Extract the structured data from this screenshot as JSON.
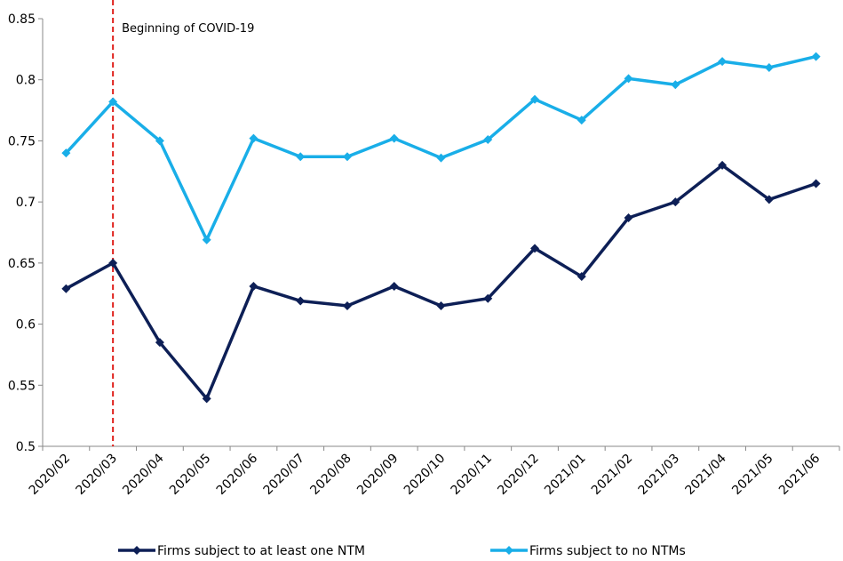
{
  "chart_data": {
    "type": "line",
    "categories": [
      "2020/02",
      "2020/03",
      "2020/04",
      "2020/05",
      "2020/06",
      "2020/07",
      "2020/08",
      "2020/09",
      "2020/10",
      "2020/11",
      "2020/12",
      "2021/01",
      "2021/02",
      "2021/03",
      "2021/04",
      "2021/05",
      "2021/06"
    ],
    "series": [
      {
        "name": "Firms subject to at least one NTM",
        "color": "#0d1f56",
        "values": [
          0.629,
          0.65,
          0.585,
          0.539,
          0.631,
          0.619,
          0.615,
          0.631,
          0.615,
          0.621,
          0.662,
          0.639,
          0.687,
          0.7,
          0.73,
          0.702,
          0.715
        ]
      },
      {
        "name": "Firms subject to no NTMs",
        "color": "#19aee8",
        "values": [
          0.74,
          0.782,
          0.75,
          0.669,
          0.752,
          0.737,
          0.737,
          0.752,
          0.736,
          0.751,
          0.784,
          0.767,
          0.801,
          0.796,
          0.815,
          0.81,
          0.819
        ]
      }
    ],
    "ylim": [
      0.5,
      0.85
    ],
    "yticks": [
      0.5,
      0.55,
      0.6,
      0.65,
      0.7,
      0.75,
      0.8,
      0.85
    ],
    "ytick_labels": [
      "0.5",
      "0.55",
      "0.6",
      "0.65",
      "0.7",
      "0.75",
      "0.8",
      "0.85"
    ],
    "title": "",
    "xlabel": "",
    "ylabel": "",
    "grid": false,
    "legend_position": "bottom",
    "annotation": {
      "text": "Beginning of COVID-19",
      "at_category": "2020/03",
      "line_color": "#e0201b",
      "line_style": "dashed"
    }
  }
}
